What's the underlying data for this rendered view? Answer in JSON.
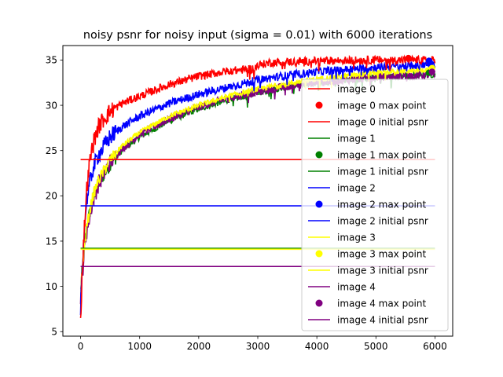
{
  "chart_data": {
    "type": "line",
    "title": "noisy psnr for noisy input (sigma = 0.01) with 6000 iterations",
    "xlabel": "",
    "ylabel": "",
    "xlim": [
      -300,
      6300
    ],
    "ylim": [
      4.5,
      36.6
    ],
    "x_ticks": [
      0,
      1000,
      2000,
      3000,
      4000,
      5000,
      6000
    ],
    "y_ticks": [
      5,
      10,
      15,
      20,
      25,
      30,
      35
    ],
    "grid": false,
    "legend_position": "center-right",
    "series": [
      {
        "name": "image 0",
        "color": "#ff0000",
        "noise": 0.45,
        "points": [
          [
            0,
            6.1
          ],
          [
            20,
            10
          ],
          [
            50,
            15
          ],
          [
            100,
            20.5
          ],
          [
            150,
            23.5
          ],
          [
            200,
            25.5
          ],
          [
            300,
            27.6
          ],
          [
            400,
            28.6
          ],
          [
            500,
            29.3
          ],
          [
            700,
            30.2
          ],
          [
            1000,
            31.0
          ],
          [
            1500,
            32.3
          ],
          [
            2000,
            33.2
          ],
          [
            2500,
            33.8
          ],
          [
            2900,
            34.0
          ],
          [
            3000,
            34.4
          ],
          [
            3200,
            34.7
          ],
          [
            3500,
            34.8
          ],
          [
            4000,
            34.9
          ],
          [
            5000,
            35.0
          ],
          [
            6000,
            35.0
          ]
        ],
        "max_point": [
          5550,
          35.2
        ],
        "initial_psnr": 24.0,
        "legend_line": "image 0",
        "legend_max": "image 0 max point",
        "legend_initial": "image 0 initial psnr"
      },
      {
        "name": "image 1",
        "color": "#008000",
        "noise": 0.35,
        "points": [
          [
            0,
            9.5
          ],
          [
            20,
            11
          ],
          [
            50,
            13.5
          ],
          [
            100,
            16.5
          ],
          [
            200,
            19.5
          ],
          [
            300,
            21.3
          ],
          [
            500,
            23.5
          ],
          [
            700,
            25.0
          ],
          [
            1000,
            26.5
          ],
          [
            1500,
            28.3
          ],
          [
            2000,
            29.6
          ],
          [
            2500,
            30.6
          ],
          [
            3000,
            31.4
          ],
          [
            3500,
            32.0
          ],
          [
            4000,
            32.5
          ],
          [
            5000,
            33.1
          ],
          [
            6000,
            33.4
          ]
        ],
        "max_point": [
          5900,
          33.6
        ],
        "initial_psnr": 14.2,
        "legend_line": "image 1",
        "legend_max": "image 1 max point",
        "legend_initial": "image 1 initial psnr"
      },
      {
        "name": "image 2",
        "color": "#0000ff",
        "noise": 0.45,
        "points": [
          [
            0,
            7.5
          ],
          [
            20,
            11
          ],
          [
            50,
            15
          ],
          [
            100,
            19.5
          ],
          [
            200,
            22.8
          ],
          [
            300,
            24.5
          ],
          [
            500,
            26.5
          ],
          [
            700,
            27.6
          ],
          [
            1000,
            28.8
          ],
          [
            1500,
            30.2
          ],
          [
            2000,
            31.2
          ],
          [
            2500,
            32.0
          ],
          [
            3000,
            32.8
          ],
          [
            3500,
            33.3
          ],
          [
            4000,
            33.7
          ],
          [
            5000,
            34.2
          ],
          [
            6000,
            34.5
          ]
        ],
        "max_point": [
          5900,
          34.9
        ],
        "initial_psnr": 18.9,
        "legend_line": "image 2",
        "legend_max": "image 2 max point",
        "legend_initial": "image 2 initial psnr"
      },
      {
        "name": "image 3",
        "color": "#ffff00",
        "noise": 0.3,
        "points": [
          [
            0,
            9.3
          ],
          [
            20,
            11
          ],
          [
            50,
            13.5
          ],
          [
            100,
            16.5
          ],
          [
            200,
            19.8
          ],
          [
            300,
            21.7
          ],
          [
            500,
            24.0
          ],
          [
            700,
            25.5
          ],
          [
            1000,
            27.0
          ],
          [
            1500,
            28.8
          ],
          [
            2000,
            30.0
          ],
          [
            2500,
            31.0
          ],
          [
            3000,
            31.8
          ],
          [
            3500,
            32.4
          ],
          [
            4000,
            32.9
          ],
          [
            5000,
            33.6
          ],
          [
            6000,
            34.0
          ]
        ],
        "max_point": [
          5950,
          34.1
        ],
        "initial_psnr": 14.1,
        "legend_line": "image 3",
        "legend_max": "image 3 max point",
        "legend_initial": "image 3 initial psnr"
      },
      {
        "name": "image 4",
        "color": "#800080",
        "noise": 0.45,
        "points": [
          [
            0,
            9.0
          ],
          [
            20,
            10.5
          ],
          [
            50,
            13.0
          ],
          [
            100,
            16.0
          ],
          [
            200,
            19.3
          ],
          [
            300,
            21.3
          ],
          [
            500,
            23.7
          ],
          [
            700,
            25.2
          ],
          [
            1000,
            26.8
          ],
          [
            1500,
            28.5
          ],
          [
            2000,
            29.8
          ],
          [
            2500,
            30.8
          ],
          [
            3000,
            31.5
          ],
          [
            3500,
            32.1
          ],
          [
            4000,
            32.5
          ],
          [
            5000,
            33.1
          ],
          [
            6000,
            33.4
          ]
        ],
        "max_point": [
          5950,
          33.7
        ],
        "initial_psnr": 12.2,
        "legend_line": "image 4",
        "legend_max": "image 4 max point",
        "legend_initial": "image 4 initial psnr"
      }
    ]
  }
}
